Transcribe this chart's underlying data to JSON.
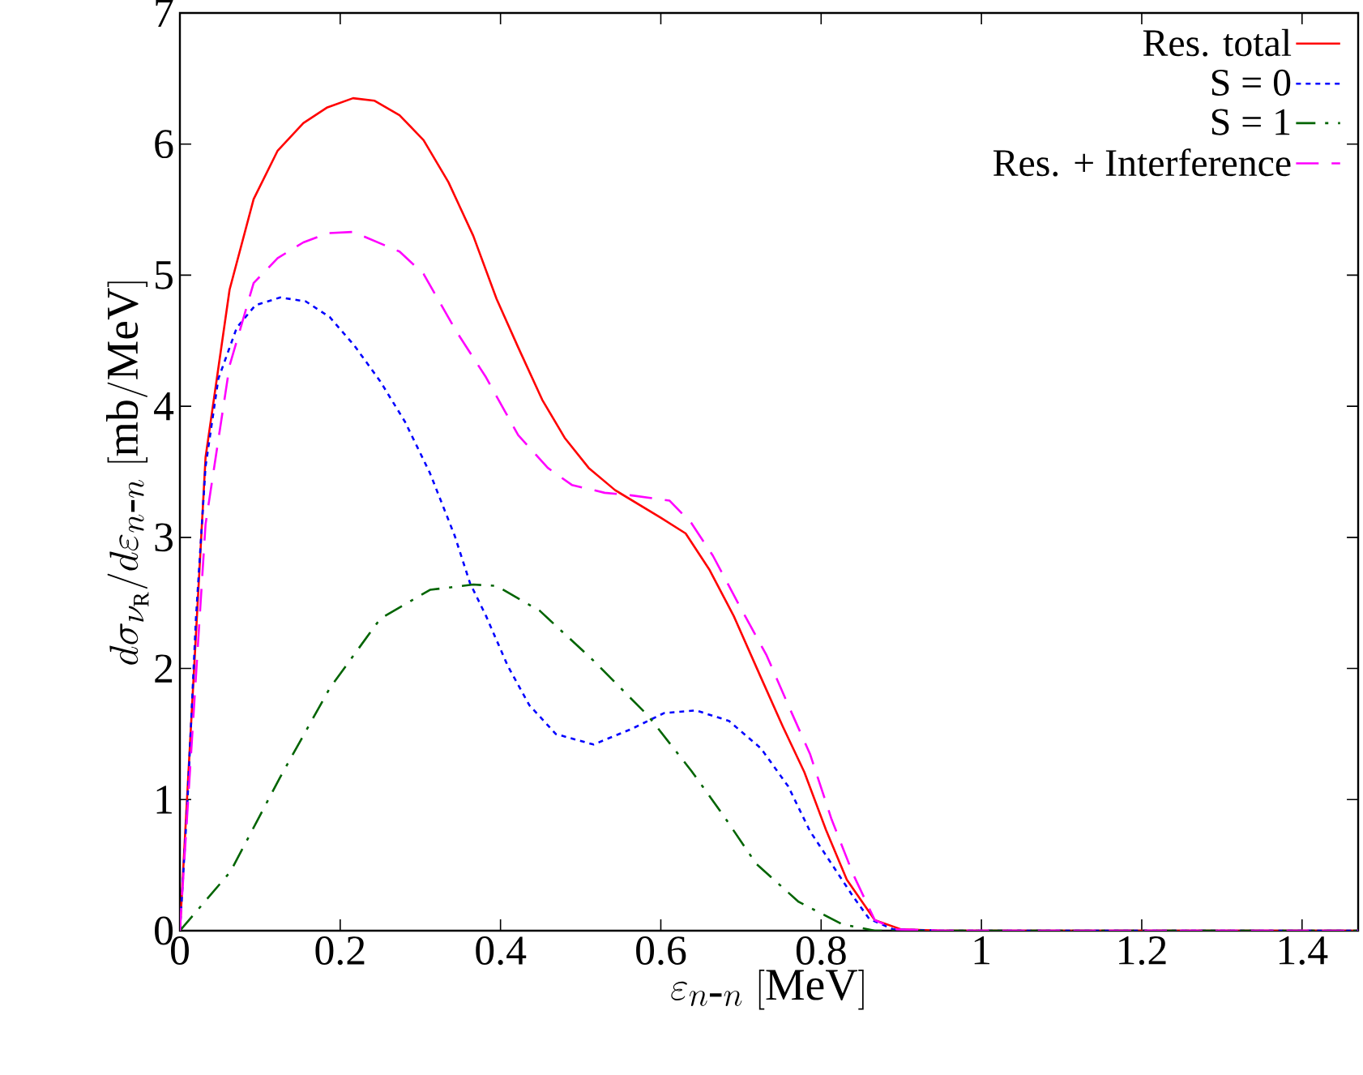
{
  "chart_data": {
    "type": "line",
    "xlabel": "\\varepsilon_{n\\mbox{-}n}\\ [\\mathrm{MeV}]",
    "ylabel": "d\\sigma_{\\nu_{\\mathrm{R}}}/d\\varepsilon_{n\\mbox{-}n}\\ [\\mathrm{mb/MeV}]",
    "xlim": [
      0,
      1.47
    ],
    "ylim": [
      0,
      7
    ],
    "xticks": [
      0,
      0.2,
      0.4,
      0.6,
      0.8,
      1,
      1.2,
      1.4
    ],
    "yticks": [
      0,
      1,
      2,
      3,
      4,
      5,
      6,
      7
    ],
    "legend": "top right",
    "grid": false,
    "series": [
      {
        "name": "Res. total",
        "color": "#ff0000",
        "line_style": "solid",
        "x": [
          0,
          0.032,
          0.062,
          0.092,
          0.122,
          0.154,
          0.184,
          0.216,
          0.243,
          0.274,
          0.304,
          0.335,
          0.366,
          0.395,
          0.422,
          0.452,
          0.48,
          0.51,
          0.543,
          0.6,
          0.631,
          0.661,
          0.691,
          0.725,
          0.752,
          0.779,
          0.806,
          0.832,
          0.867,
          0.9,
          0.95,
          1.2,
          1.47
        ],
        "values": [
          0,
          3.61,
          4.89,
          5.58,
          5.95,
          6.16,
          6.28,
          6.35,
          6.33,
          6.22,
          6.03,
          5.71,
          5.3,
          4.82,
          4.45,
          4.05,
          3.76,
          3.53,
          3.36,
          3.15,
          3.03,
          2.75,
          2.4,
          1.93,
          1.56,
          1.21,
          0.77,
          0.39,
          0.08,
          0.01,
          0,
          0,
          0
        ]
      },
      {
        "name": "S = 0",
        "color": "#0000ff",
        "line_style": "dotted",
        "x": [
          0,
          0.009,
          0.02,
          0.032,
          0.048,
          0.071,
          0.094,
          0.125,
          0.157,
          0.187,
          0.218,
          0.25,
          0.281,
          0.312,
          0.343,
          0.362,
          0.382,
          0.409,
          0.436,
          0.469,
          0.516,
          0.564,
          0.604,
          0.644,
          0.685,
          0.725,
          0.759,
          0.786,
          0.813,
          0.84,
          0.86,
          0.89,
          0.95,
          1.2,
          1.47
        ],
        "values": [
          0,
          0.93,
          2.38,
          3.54,
          4.21,
          4.6,
          4.77,
          4.83,
          4.8,
          4.68,
          4.46,
          4.19,
          3.88,
          3.49,
          3.01,
          2.65,
          2.4,
          2.02,
          1.72,
          1.5,
          1.42,
          1.54,
          1.66,
          1.68,
          1.6,
          1.39,
          1.1,
          0.76,
          0.51,
          0.26,
          0.09,
          0.01,
          0,
          0,
          0
        ]
      },
      {
        "name": "S = 1",
        "color": "#006400",
        "line_style": "dashdot",
        "x": [
          0,
          0.063,
          0.125,
          0.187,
          0.25,
          0.312,
          0.366,
          0.395,
          0.449,
          0.516,
          0.584,
          0.638,
          0.678,
          0.719,
          0.772,
          0.826,
          0.867,
          0.95,
          1.2,
          1.47
        ],
        "values": [
          0,
          0.45,
          1.17,
          1.85,
          2.38,
          2.6,
          2.64,
          2.63,
          2.44,
          2.06,
          1.64,
          1.22,
          0.88,
          0.51,
          0.22,
          0.05,
          0,
          0,
          0,
          0
        ]
      },
      {
        "name": "Res. + Interference",
        "color": "#ff00ff",
        "line_style": "dashed",
        "x": [
          0,
          0.032,
          0.062,
          0.092,
          0.122,
          0.154,
          0.184,
          0.216,
          0.274,
          0.304,
          0.345,
          0.382,
          0.422,
          0.459,
          0.489,
          0.53,
          0.564,
          0.611,
          0.638,
          0.665,
          0.698,
          0.732,
          0.759,
          0.786,
          0.813,
          0.84,
          0.867,
          0.894,
          0.95,
          1.2,
          1.47
        ],
        "values": [
          0,
          3.1,
          4.31,
          4.94,
          5.13,
          5.25,
          5.32,
          5.33,
          5.18,
          5.01,
          4.57,
          4.22,
          3.78,
          3.53,
          3.4,
          3.34,
          3.32,
          3.28,
          3.11,
          2.86,
          2.48,
          2.1,
          1.72,
          1.35,
          0.85,
          0.43,
          0.08,
          0.01,
          0,
          0,
          0
        ]
      }
    ]
  }
}
